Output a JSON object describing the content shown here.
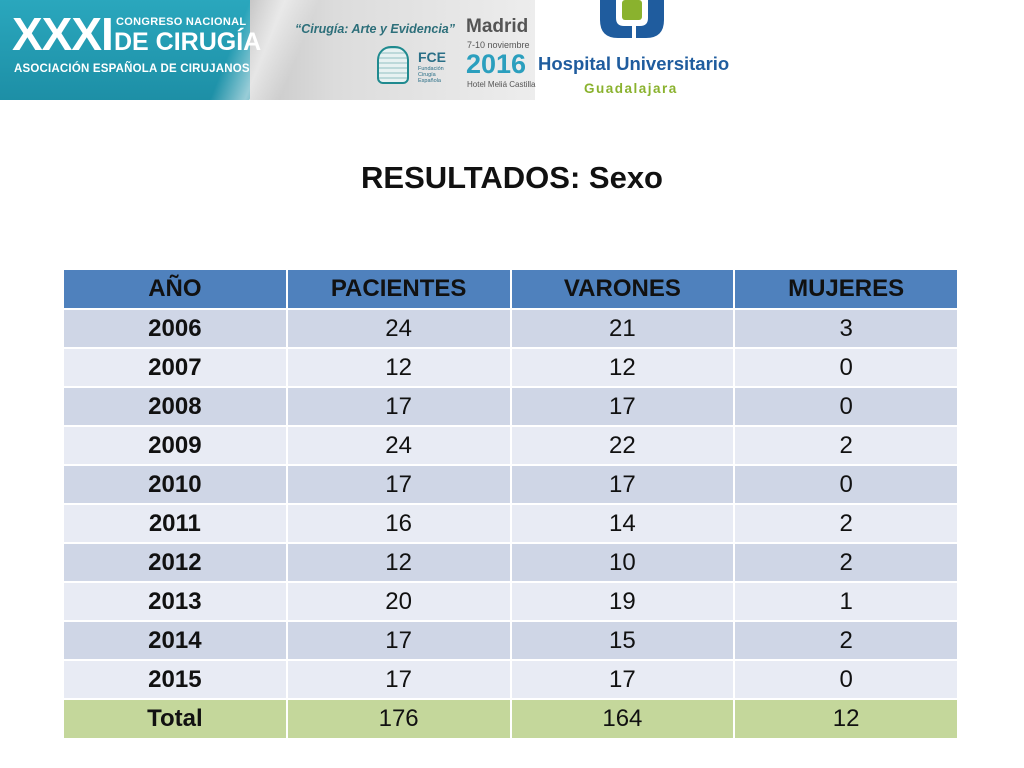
{
  "banner": {
    "roman": "XXXI",
    "congreso": "CONGRESO NACIONAL",
    "cirugia": "DE CIRUGÍA",
    "asociacion": "ASOCIACIÓN ESPAÑOLA DE CIRUJANOS",
    "lema": "“Cirugía: Arte y Evidencia”",
    "fce": "FCE",
    "fce_sub": "Fundación Cirugía Española",
    "madrid": "Madrid",
    "fechas": "7-10 noviembre",
    "year": "2016",
    "hotel": "Hotel Meliá Castilla",
    "hospital": "Hospital Universitario",
    "ciudad": "Guadalajara",
    "colors": {
      "teal": "#2aa7bd",
      "hospital_blue": "#1f5c9e",
      "hospital_green": "#8ab22e"
    }
  },
  "title": "RESULTADOS: Sexo",
  "table": {
    "headers": [
      "AÑO",
      "PACIENTES",
      "VARONES",
      "MUJERES"
    ],
    "rows": [
      [
        "2006",
        "24",
        "21",
        "3"
      ],
      [
        "2007",
        "12",
        "12",
        "0"
      ],
      [
        "2008",
        "17",
        "17",
        "0"
      ],
      [
        "2009",
        "24",
        "22",
        "2"
      ],
      [
        "2010",
        "17",
        "17",
        "0"
      ],
      [
        "2011",
        "16",
        "14",
        "2"
      ],
      [
        "2012",
        "12",
        "10",
        "2"
      ],
      [
        "2013",
        "20",
        "19",
        "1"
      ],
      [
        "2014",
        "17",
        "15",
        "2"
      ],
      [
        "2015",
        "17",
        "17",
        "0"
      ]
    ],
    "total": [
      "Total",
      "176",
      "164",
      "12"
    ],
    "colors": {
      "header": "#4f81bd",
      "row_dark": "#cfd6e6",
      "row_light": "#e8ebf4",
      "total": "#c4d79b"
    }
  }
}
